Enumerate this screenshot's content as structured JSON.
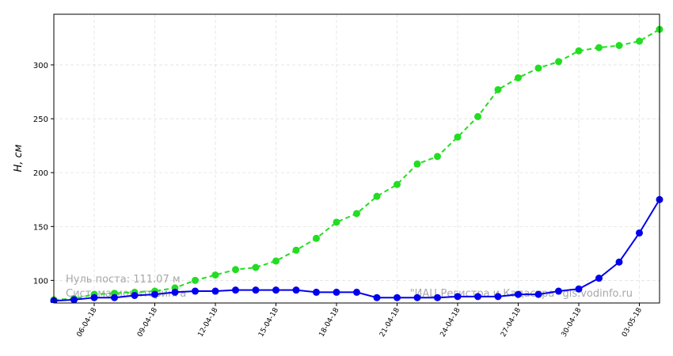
{
  "chart_data": {
    "type": "line",
    "y_label": "H, см",
    "annotations": [
      "Нуль поста: 111.07 м",
      "Система мониторинга",
      "\"ИАЦ Регистра и Кадастра\" gis.vodinfo.ru"
    ],
    "x": [
      "2018-04-04",
      "2018-04-05",
      "2018-04-06",
      "2018-04-07",
      "2018-04-08",
      "2018-04-09",
      "2018-04-10",
      "2018-04-11",
      "2018-04-12",
      "2018-04-13",
      "2018-04-14",
      "2018-04-15",
      "2018-04-16",
      "2018-04-17",
      "2018-04-18",
      "2018-04-19",
      "2018-04-20",
      "2018-04-21",
      "2018-04-22",
      "2018-04-23",
      "2018-04-24",
      "2018-04-25",
      "2018-04-26",
      "2018-04-27",
      "2018-04-28",
      "2018-04-29",
      "2018-04-30",
      "2018-05-01",
      "2018-05-02",
      "2018-05-03",
      "2018-05-04"
    ],
    "series": [
      {
        "color": "#22dd22",
        "dashed": true,
        "values": [
          82,
          83,
          87,
          88,
          89,
          90,
          93,
          100,
          105,
          110,
          112,
          118,
          128,
          139,
          154,
          162,
          178,
          189,
          208,
          215,
          233,
          252,
          277,
          288,
          297,
          303,
          313,
          316,
          318,
          322,
          333
        ]
      },
      {
        "color": "#0000ee",
        "dashed": false,
        "values": [
          81,
          82,
          84,
          84,
          86,
          87,
          89,
          90,
          90,
          91,
          91,
          91,
          91,
          89,
          89,
          89,
          84,
          84,
          84,
          84,
          85,
          85,
          85,
          87,
          87,
          90,
          92,
          102,
          117,
          144,
          175
        ]
      }
    ],
    "xlim": [
      "2018-04-04",
      "2018-05-04"
    ],
    "xticks": [
      {
        "value": "2018-04-06",
        "label": "06-04-18"
      },
      {
        "value": "2018-04-09",
        "label": "09-04-18"
      },
      {
        "value": "2018-04-12",
        "label": "12-04-18"
      },
      {
        "value": "2018-04-15",
        "label": "15-04-18"
      },
      {
        "value": "2018-04-18",
        "label": "18-04-18"
      },
      {
        "value": "2018-04-21",
        "label": "21-04-18"
      },
      {
        "value": "2018-04-24",
        "label": "24-04-18"
      },
      {
        "value": "2018-04-27",
        "label": "27-04-18"
      },
      {
        "value": "2018-04-30",
        "label": "30-04-18"
      },
      {
        "value": "2018-05-03",
        "label": "03-05-18"
      }
    ],
    "ylim": [
      79,
      347
    ],
    "yticks": [
      100,
      150,
      200,
      250,
      300
    ],
    "grid": true
  }
}
